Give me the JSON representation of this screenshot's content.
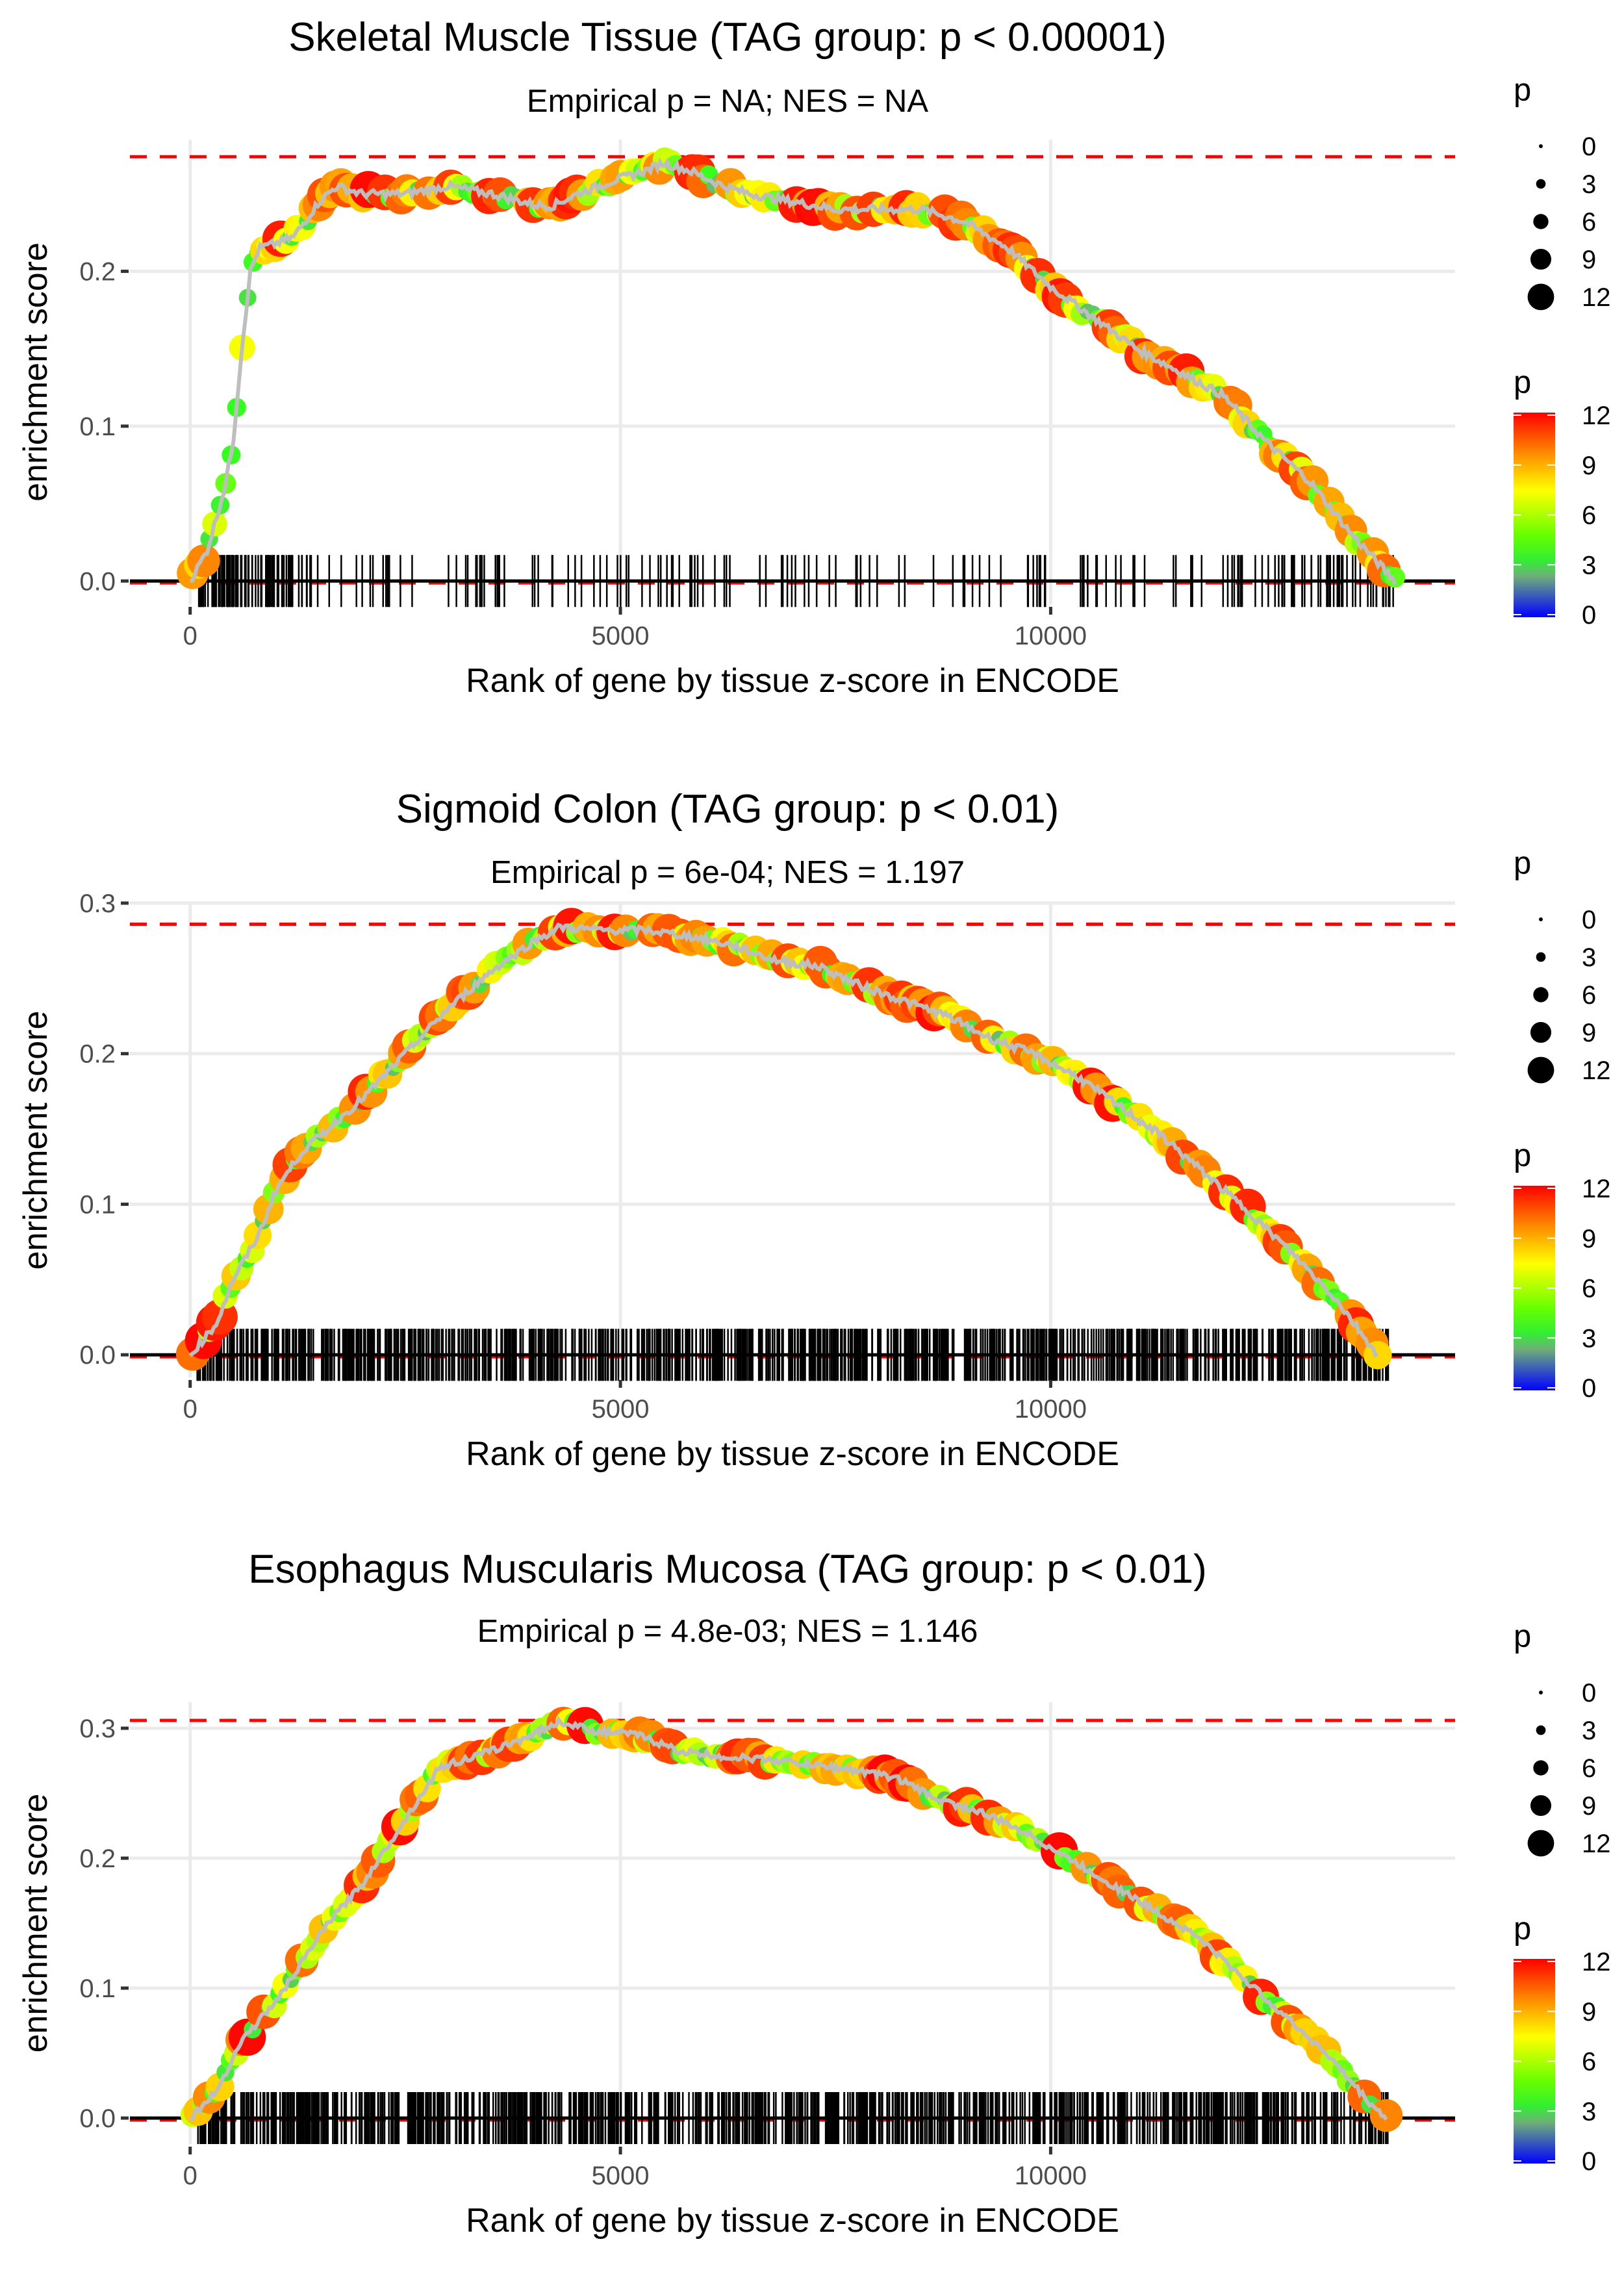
{
  "chart_data": [
    {
      "type": "line",
      "title": "Skeletal Muscle Tissue (TAG group: p < 0.00001)",
      "subtitle": "Empirical p = NA; NES = NA",
      "xlabel": "Rank of gene by tissue z-score in ENCODE",
      "ylabel": "enrichment score",
      "xlim": [
        -700,
        14700
      ],
      "ylim": [
        -0.015,
        0.285
      ],
      "x_ticks": [
        0,
        5000,
        10000
      ],
      "x_tick_labels": [
        "0",
        "5000",
        "10000"
      ],
      "y_ticks": [
        0.0,
        0.1,
        0.2
      ],
      "y_tick_labels": [
        "0.0",
        "0.1",
        "0.2"
      ],
      "max_es_line": 0.274,
      "grid": true,
      "running_es": {
        "x": [
          0,
          200,
          400,
          500,
          600,
          700,
          800,
          1000,
          1200,
          1500,
          1700,
          2000,
          2500,
          3000,
          3500,
          4000,
          4200,
          4500,
          5000,
          5300,
          5500,
          5800,
          6200,
          6500,
          7000,
          7500,
          8000,
          8500,
          9000,
          9500,
          10000,
          10500,
          11000,
          11500,
          12000,
          12500,
          13000,
          13500,
          13800,
          14000
        ],
        "y": [
          0.0,
          0.02,
          0.06,
          0.09,
          0.15,
          0.2,
          0.215,
          0.218,
          0.222,
          0.245,
          0.255,
          0.25,
          0.25,
          0.255,
          0.25,
          0.243,
          0.242,
          0.25,
          0.26,
          0.265,
          0.27,
          0.265,
          0.255,
          0.25,
          0.245,
          0.24,
          0.24,
          0.24,
          0.232,
          0.215,
          0.19,
          0.17,
          0.15,
          0.135,
          0.12,
          0.09,
          0.065,
          0.03,
          0.012,
          0.0
        ]
      },
      "hit_density": "sparse",
      "size_legend": {
        "title": "p",
        "values": [
          0,
          3,
          6,
          9,
          12
        ]
      },
      "color_legend": {
        "title": "p",
        "values": [
          12,
          9,
          6,
          3,
          0
        ],
        "colors": [
          "#ff0000",
          "#ff8c00",
          "#ffff00",
          "#33ff00",
          "#0000ff"
        ]
      }
    },
    {
      "type": "line",
      "title": "Sigmoid Colon (TAG group: p < 0.01)",
      "subtitle": "Empirical p = 6e-04; NES = 1.197",
      "xlabel": "Rank of gene by tissue z-score in ENCODE",
      "ylabel": "enrichment score",
      "xlim": [
        -700,
        14700
      ],
      "ylim": [
        -0.015,
        0.3
      ],
      "x_ticks": [
        0,
        5000,
        10000
      ],
      "x_tick_labels": [
        "0",
        "5000",
        "10000"
      ],
      "y_ticks": [
        0.0,
        0.1,
        0.2,
        0.3
      ],
      "y_tick_labels": [
        "0.0",
        "0.1",
        "0.2",
        "0.3"
      ],
      "max_es_line": 0.286,
      "grid": true,
      "running_es": {
        "x": [
          0,
          300,
          500,
          800,
          1000,
          1300,
          1600,
          2000,
          2500,
          3000,
          3500,
          4000,
          4300,
          4800,
          5300,
          5800,
          6300,
          6800,
          7300,
          7800,
          8300,
          8800,
          9300,
          9800,
          10300,
          10800,
          11300,
          11800,
          12300,
          12800,
          13300,
          13800
        ],
        "y": [
          0.0,
          0.02,
          0.05,
          0.08,
          0.11,
          0.135,
          0.15,
          0.17,
          0.2,
          0.23,
          0.255,
          0.275,
          0.284,
          0.282,
          0.282,
          0.278,
          0.272,
          0.262,
          0.258,
          0.245,
          0.235,
          0.225,
          0.21,
          0.2,
          0.185,
          0.165,
          0.145,
          0.12,
          0.095,
          0.068,
          0.038,
          0.0
        ]
      },
      "hit_density": "dense",
      "size_legend": {
        "title": "p",
        "values": [
          0,
          3,
          6,
          9,
          12
        ]
      },
      "color_legend": {
        "title": "p",
        "values": [
          12,
          9,
          6,
          3,
          0
        ],
        "colors": [
          "#ff0000",
          "#ff8c00",
          "#ffff00",
          "#33ff00",
          "#0000ff"
        ]
      }
    },
    {
      "type": "line",
      "title": "Esophagus Muscularis Mucosa (TAG group: p < 0.01)",
      "subtitle": "Empirical p = 4.8e-03; NES = 1.146",
      "xlabel": "Rank of gene by tissue z-score in ENCODE",
      "ylabel": "enrichment score",
      "xlim": [
        -700,
        14700
      ],
      "ylim": [
        -0.02,
        0.32
      ],
      "x_ticks": [
        0,
        5000,
        10000
      ],
      "x_tick_labels": [
        "0",
        "5000",
        "10000"
      ],
      "y_ticks": [
        0.0,
        0.1,
        0.2,
        0.3
      ],
      "y_tick_labels": [
        "0.0",
        "0.1",
        "0.2",
        "0.3"
      ],
      "max_es_line": 0.306,
      "grid": true,
      "running_es": {
        "x": [
          0,
          300,
          600,
          1000,
          1300,
          1600,
          2000,
          2500,
          2900,
          3300,
          3800,
          4300,
          4700,
          5200,
          5700,
          6200,
          6700,
          7200,
          7700,
          8200,
          8700,
          9200,
          9700,
          10200,
          10700,
          11200,
          11700,
          12200,
          12700,
          13200,
          13700,
          13900
        ],
        "y": [
          0.0,
          0.02,
          0.06,
          0.09,
          0.12,
          0.15,
          0.18,
          0.23,
          0.27,
          0.278,
          0.29,
          0.305,
          0.298,
          0.295,
          0.282,
          0.278,
          0.276,
          0.272,
          0.268,
          0.262,
          0.245,
          0.235,
          0.22,
          0.2,
          0.18,
          0.16,
          0.14,
          0.11,
          0.08,
          0.05,
          0.012,
          0.0
        ]
      },
      "hit_density": "dense",
      "size_legend": {
        "title": "p",
        "values": [
          0,
          3,
          6,
          9,
          12
        ]
      },
      "color_legend": {
        "title": "p",
        "values": [
          12,
          9,
          6,
          3,
          0
        ],
        "colors": [
          "#ff0000",
          "#ff8c00",
          "#ffff00",
          "#33ff00",
          "#0000ff"
        ]
      }
    }
  ]
}
